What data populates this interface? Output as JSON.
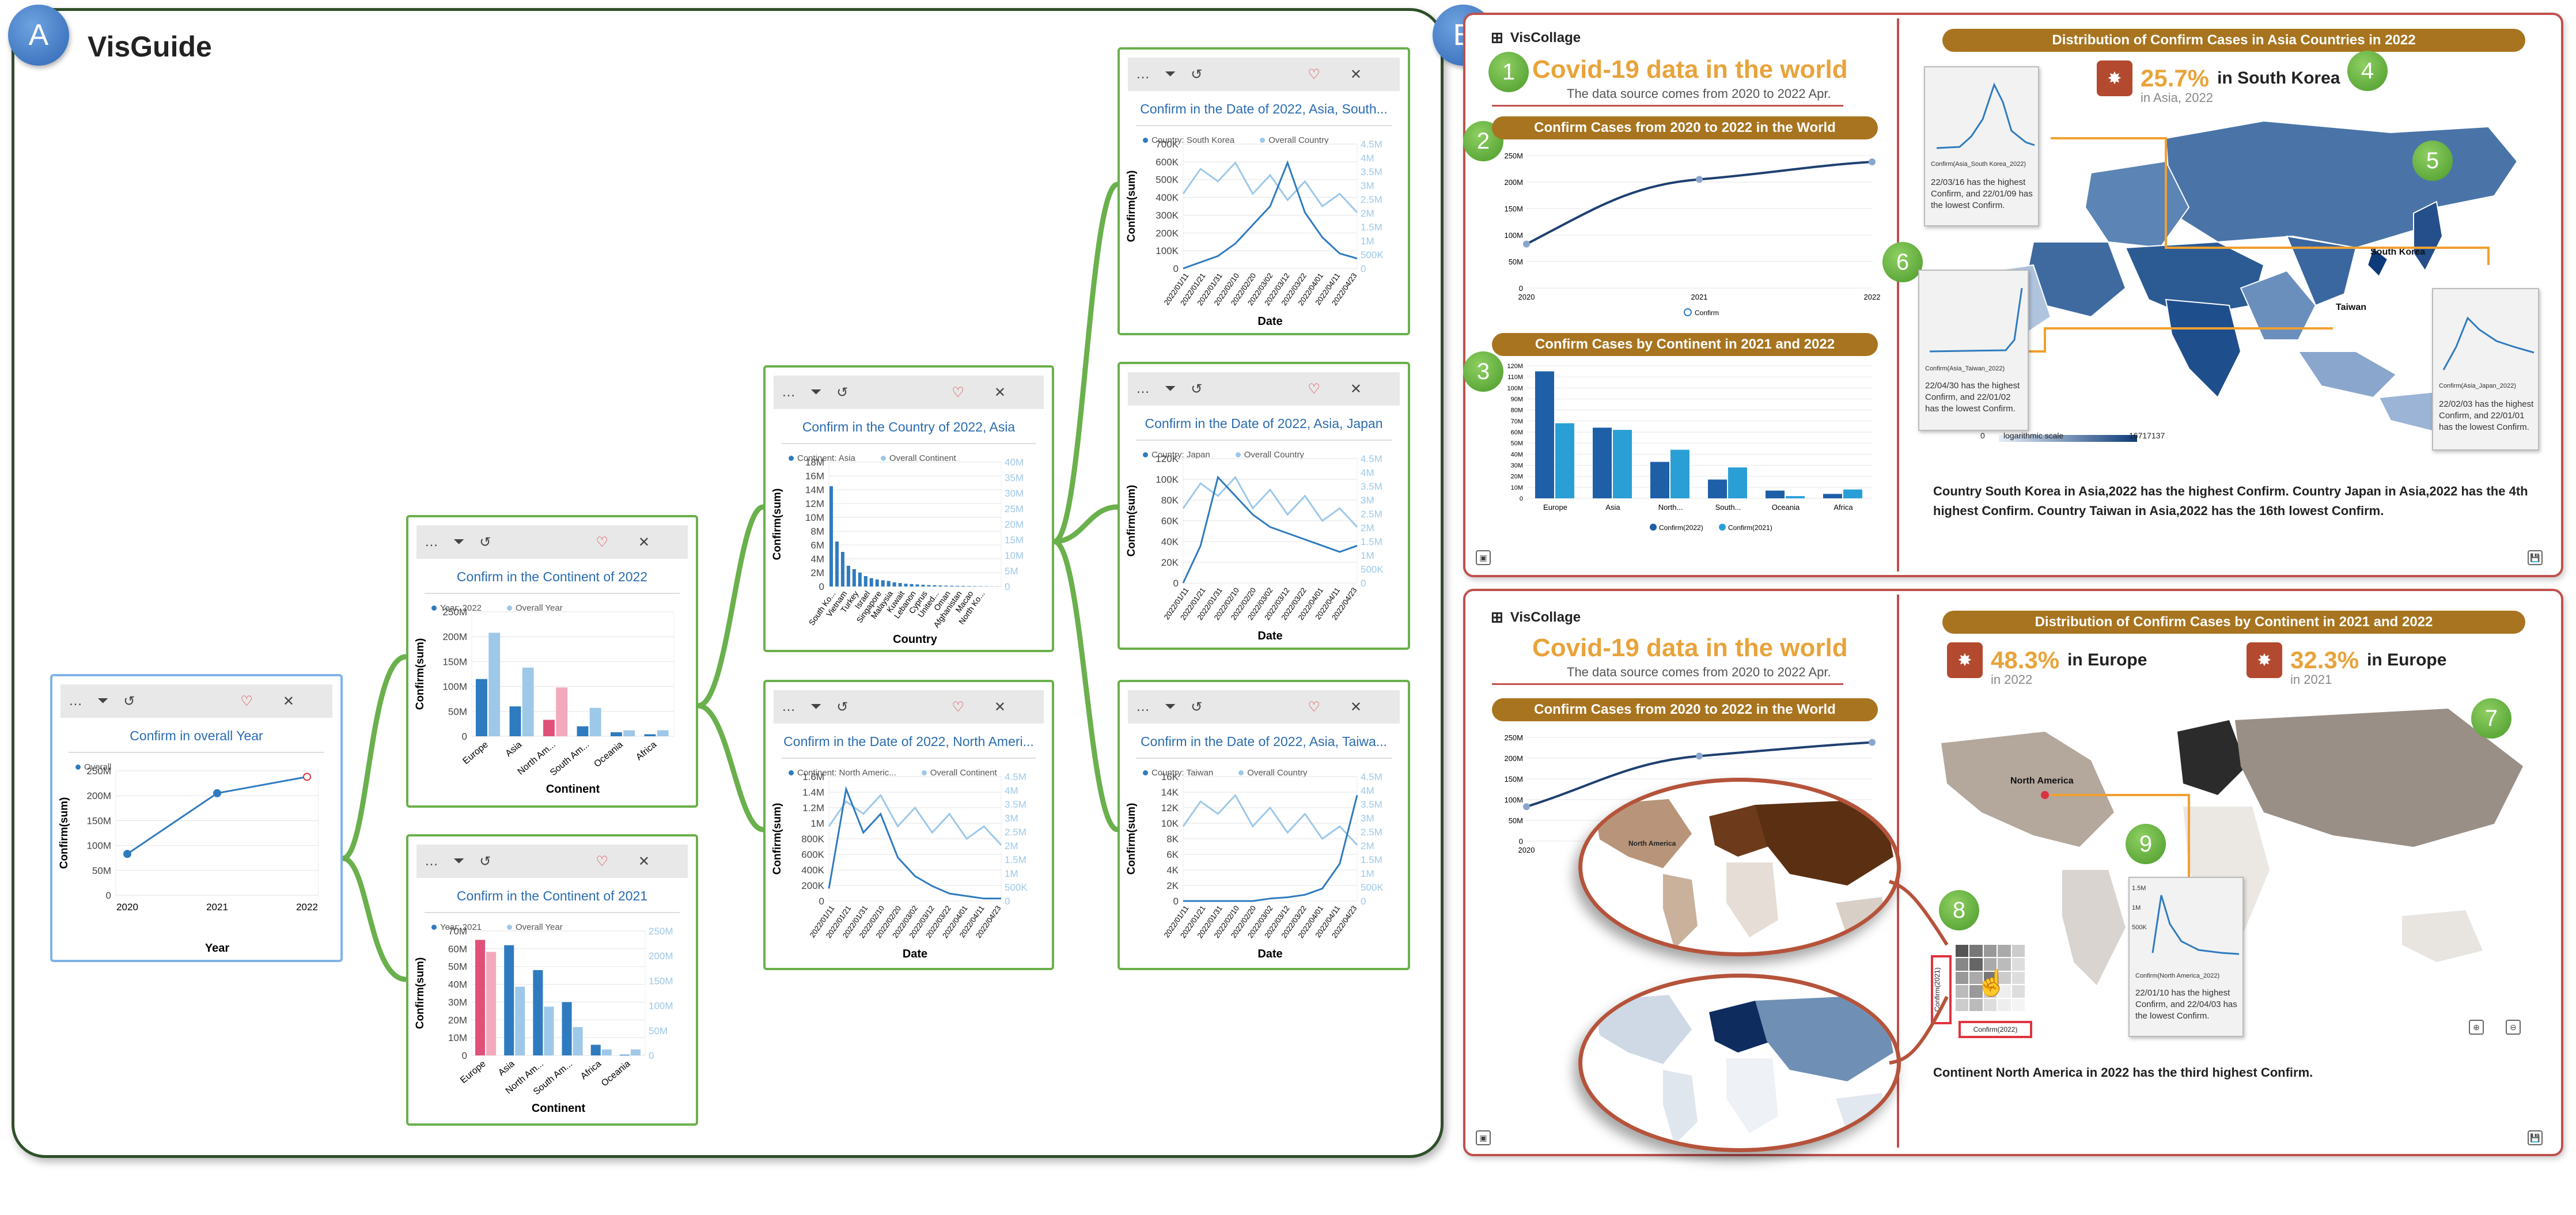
{
  "panel_a": {
    "badge": "A",
    "title": "VisGuide"
  },
  "panel_b": {
    "badge": "B"
  },
  "cards": [
    {
      "id": "c1",
      "title": "Confirm in overall Year",
      "legend": [
        "Overall"
      ],
      "ylabel": "Confirm(sum)",
      "xlabel": "Year",
      "y_ticks": [
        "250M",
        "200M",
        "150M",
        "100M",
        "50M",
        "0"
      ],
      "x_ticks": [
        "2020",
        "2021",
        "2022"
      ]
    },
    {
      "id": "c2",
      "title": "Confirm in the Continent of 2022",
      "legend": [
        "Year: 2022",
        "Overall Year"
      ],
      "ylabel": "Confirm(sum)",
      "xlabel": "Continent",
      "y_ticks": [
        "250M",
        "200M",
        "150M",
        "100M",
        "50M",
        "0"
      ],
      "x_ticks": [
        "Europe",
        "Asia",
        "North Am...",
        "South Am...",
        "Oceania",
        "Africa"
      ]
    },
    {
      "id": "c3",
      "title": "Confirm in the Continent of 2021",
      "legend": [
        "Year: 2021",
        "Overall Year"
      ],
      "ylabel": "Confirm(sum)",
      "xlabel": "Continent",
      "y_ticks": [
        "70M",
        "60M",
        "50M",
        "40M",
        "30M",
        "20M",
        "10M",
        "0"
      ],
      "y2_ticks": [
        "250M",
        "200M",
        "150M",
        "100M",
        "50M",
        "0"
      ],
      "x_ticks": [
        "Europe",
        "Asia",
        "North Am...",
        "South Am...",
        "Africa",
        "Oceania"
      ]
    },
    {
      "id": "c4",
      "title": "Confirm in the Country of 2022, Asia",
      "legend": [
        "Continent: Asia",
        "Overall Continent"
      ],
      "ylabel": "Confirm(sum)",
      "xlabel": "Country",
      "y_ticks": [
        "18M",
        "16M",
        "14M",
        "12M",
        "10M",
        "8M",
        "6M",
        "4M",
        "2M",
        "0"
      ],
      "y2_ticks": [
        "40M",
        "35M",
        "30M",
        "25M",
        "20M",
        "15M",
        "10M",
        "5M",
        "0"
      ],
      "x_ticks": [
        "South Ko...",
        "Vietnam",
        "Turkey",
        "Israel",
        "Singapore",
        "Malaysia",
        "Kuwait",
        "Lebanon",
        "Cyprus",
        "United...",
        "Oman",
        "Afghanistan",
        "Macao",
        "North Ko..."
      ]
    },
    {
      "id": "c5",
      "title": "Confirm in the Date of 2022, North Ameri...",
      "legend": [
        "Continent: North Americ...",
        "Overall Continent"
      ],
      "ylabel": "Confirm(sum)",
      "xlabel": "Date",
      "y_ticks": [
        "1.6M",
        "1.4M",
        "1.2M",
        "1M",
        "800K",
        "600K",
        "400K",
        "200K",
        "0"
      ],
      "y2_ticks": [
        "4.5M",
        "4M",
        "3.5M",
        "3M",
        "2.5M",
        "2M",
        "1.5M",
        "1M",
        "500K",
        "0"
      ]
    },
    {
      "id": "c6",
      "title": "Confirm in the Date of 2022, Asia, South...",
      "legend": [
        "Country: South Korea",
        "Overall Country"
      ],
      "ylabel": "Confirm(sum)",
      "xlabel": "Date",
      "y_ticks": [
        "700K",
        "600K",
        "500K",
        "400K",
        "300K",
        "200K",
        "100K",
        "0"
      ],
      "y2_ticks": [
        "4.5M",
        "4M",
        "3.5M",
        "3M",
        "2.5M",
        "2M",
        "1.5M",
        "1M",
        "500K",
        "0"
      ]
    },
    {
      "id": "c7",
      "title": "Confirm in the Date of 2022, Asia, Japan",
      "legend": [
        "Country: Japan",
        "Overall Country"
      ],
      "ylabel": "Confirm(sum)",
      "xlabel": "Date",
      "y_ticks": [
        "120K",
        "100K",
        "80K",
        "60K",
        "40K",
        "20K",
        "0"
      ],
      "y2_ticks": [
        "4.5M",
        "4M",
        "3.5M",
        "3M",
        "2.5M",
        "2M",
        "1.5M",
        "1M",
        "500K",
        "0"
      ]
    },
    {
      "id": "c8",
      "title": "Confirm in the Date of 2022, Asia, Taiwa...",
      "legend": [
        "Country: Taiwan",
        "Overall Country"
      ],
      "ylabel": "Confirm(sum)",
      "xlabel": "Date",
      "y_ticks": [
        "16K",
        "14K",
        "12K",
        "10K",
        "8K",
        "6K",
        "4K",
        "2K",
        "0"
      ],
      "y2_ticks": [
        "4.5M",
        "4M",
        "3.5M",
        "3M",
        "2.5M",
        "2M",
        "1.5M",
        "1M",
        "500K",
        "0"
      ]
    }
  ],
  "date_ticks": [
    "2022/01/11",
    "2022/01/21",
    "2022/01/31",
    "2022/02/10",
    "2022/02/20",
    "2022/03/02",
    "2022/03/12",
    "2022/03/22",
    "2022/04/01",
    "2022/04/11",
    "2022/04/23"
  ],
  "toolbar": {
    "more": "…",
    "filter": "⏷",
    "undo": "↺",
    "heart": "♡",
    "close": "✕"
  },
  "collage1": {
    "app": "VisCollage",
    "num1": "1",
    "title": "Covid-19 data in the world",
    "source": "The data source comes from 2020 to 2022 Apr.",
    "num2": "2",
    "chart2_title": "Confirm Cases from 2020 to 2022 in the World",
    "chart2_legend": "Confirm",
    "chart2_y": [
      "250M",
      "200M",
      "150M",
      "100M",
      "50M",
      "0"
    ],
    "chart2_x": [
      "2020",
      "2021",
      "2022"
    ],
    "num3": "3",
    "chart3_title": "Confirm Cases by Continent in 2021 and 2022",
    "chart3_y": [
      "120M",
      "110M",
      "100M",
      "90M",
      "80M",
      "70M",
      "60M",
      "50M",
      "40M",
      "30M",
      "20M",
      "10M",
      "0"
    ],
    "chart3_x": [
      "Europe",
      "Asia",
      "North...",
      "South...",
      "Oceania",
      "Africa"
    ],
    "chart3_legend": [
      "Confirm(2022)",
      "Confirm(2021)"
    ],
    "map_title": "Distribution of Confirm Cases in Asia Countries in 2022",
    "num4": "4",
    "num5": "5",
    "num6": "6",
    "stat_pct": "25.7%",
    "stat_label": "in South Korea",
    "stat_in": "in Asia, 2022",
    "mini_korea_legend": "Confirm(Asia_South Korea_2022)",
    "mini_korea_text": "22/03/16 has the highest Confirm, and 22/01/09 has the lowest Confirm.",
    "mini_taiwan_legend": "Confirm(Asia_Taiwan_2022)",
    "mini_taiwan_text": "22/04/30 has the highest Confirm, and 22/01/02 has the lowest Confirm.",
    "mini_japan_legend": "Confirm(Asia_Japan_2022)",
    "mini_japan_text": "22/02/03 has the highest Confirm, and 22/01/01 has the lowest Confirm.",
    "map_label_korea": "South Korea",
    "map_label_taiwan": "Taiwan",
    "scale_min": "0",
    "scale_label": "logarithmic scale",
    "scale_max": "16717137",
    "description": "Country South Korea in Asia,2022 has the highest Confirm. Country Japan in Asia,2022 has the 4th highest Confirm. Country Taiwan in Asia,2022 has the 16th lowest Confirm."
  },
  "collage2": {
    "app": "VisCollage",
    "title": "Covid-19 data in the world",
    "source": "The data source comes from 2020 to 2022 Apr.",
    "chart_title": "Confirm Cases from 2020 to 2022 in the World",
    "chart_y": [
      "250M",
      "200M",
      "150M",
      "100M",
      "50M",
      "0"
    ],
    "chart_x0": "2020",
    "map_title": "Distribution of Confirm Cases by Continent in 2021 and 2022",
    "stat1_pct": "48.3%",
    "stat1_label": "in Europe",
    "stat1_in": "in 2022",
    "stat2_pct": "32.3%",
    "stat2_label": "in Europe",
    "stat2_in": "in 2021",
    "num7": "7",
    "num8": "8",
    "num9": "9",
    "map_label_na": "North America",
    "lens_label": "North America",
    "mini_na_legend": "Confirm(North America_2022)",
    "mini_na_text": "22/01/10 has the highest Confirm, and 22/04/03 has the lowest Confirm.",
    "mini_na_y": [
      "1.5M",
      "1M",
      "500K"
    ],
    "matrix_y": "Confirm(2021)",
    "matrix_x": "Confirm(2022)",
    "description": "Continent North America in 2022 has the third highest Confirm."
  },
  "colors": {
    "bar_dark": "#2f7bbf",
    "bar_light": "#9ec8e8",
    "bar_pink": "#e0517a",
    "bar_pink_light": "#f3a9bd",
    "green_link": "#6ab04c"
  },
  "chart_data": [
    {
      "type": "line",
      "id": "overall-year",
      "x": [
        "2020",
        "2021",
        "2022"
      ],
      "values": [
        83,
        205,
        238
      ],
      "unit": "M",
      "ylim": [
        0,
        250
      ]
    },
    {
      "type": "bar",
      "id": "continent-2022",
      "categories": [
        "Europe",
        "Asia",
        "North Am...",
        "South Am...",
        "Oceania",
        "Africa"
      ],
      "series": [
        {
          "name": "Year: 2022",
          "values": [
            115,
            60,
            33,
            20,
            8,
            4
          ]
        },
        {
          "name": "Overall Year",
          "values": [
            208,
            138,
            98,
            57,
            12,
            12
          ]
        }
      ],
      "ylim": [
        0,
        250
      ],
      "unit": "M"
    },
    {
      "type": "bar",
      "id": "continent-2021",
      "categories": [
        "Europe",
        "Asia",
        "North Am...",
        "South Am...",
        "Africa",
        "Oceania"
      ],
      "series": [
        {
          "name": "Year: 2021",
          "values": [
            65,
            62,
            48,
            30,
            6,
            0.4
          ]
        },
        {
          "name": "Overall Year",
          "values": [
            208,
            138,
            98,
            57,
            12,
            12
          ]
        }
      ],
      "ylim": [
        0,
        70
      ],
      "y2lim": [
        0,
        250
      ],
      "unit": "M"
    },
    {
      "type": "bar",
      "id": "country-2022-asia",
      "values": [
        14.5,
        6.5,
        5,
        3,
        2.5,
        2,
        1.5,
        1.2,
        1,
        0.9,
        0.8,
        0.6,
        0.5,
        0.4,
        0.35,
        0.3,
        0.25,
        0.2,
        0.18,
        0.15,
        0.12,
        0.1,
        0.09,
        0.08,
        0.06,
        0.05,
        0.04,
        0.03,
        0.02,
        0.01
      ],
      "ylim": [
        0,
        18
      ],
      "unit": "M"
    },
    {
      "type": "bar",
      "id": "collage-continent",
      "categories": [
        "Europe",
        "Asia",
        "North...",
        "South...",
        "Oceania",
        "Africa"
      ],
      "series": [
        {
          "name": "Confirm(2022)",
          "values": [
            115,
            64,
            33,
            17,
            7,
            4
          ]
        },
        {
          "name": "Confirm(2021)",
          "values": [
            68,
            62,
            44,
            28,
            2,
            8
          ]
        }
      ],
      "ylim": [
        0,
        120
      ],
      "unit": "M"
    },
    {
      "type": "line",
      "id": "collage-world",
      "x": [
        "2020",
        "2021",
        "2022"
      ],
      "values": [
        83,
        205,
        238
      ],
      "ylim": [
        0,
        250
      ],
      "unit": "M"
    }
  ]
}
